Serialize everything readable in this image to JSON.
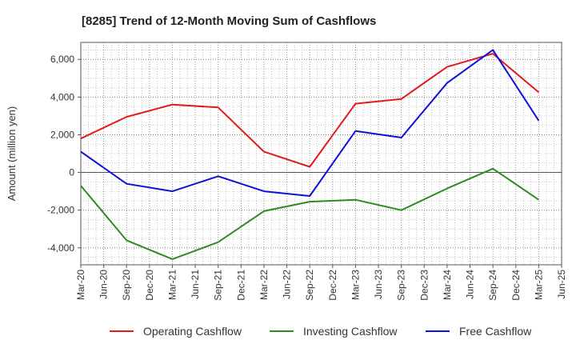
{
  "chart_data": {
    "type": "line",
    "title": "[8285]  Trend of 12-Month Moving Sum of Cashflows",
    "xlabel": "",
    "ylabel": "Amount (million yen)",
    "ylim": [
      -4900,
      6900
    ],
    "yticks": [
      -4000,
      -2000,
      0,
      2000,
      4000,
      6000
    ],
    "ytick_labels": [
      "-4,000",
      "-2,000",
      "0",
      "2,000",
      "4,000",
      "6,000"
    ],
    "x_ticks": [
      "Mar-20",
      "Jun-20",
      "Sep-20",
      "Dec-20",
      "Mar-21",
      "Jun-21",
      "Sep-21",
      "Dec-21",
      "Mar-22",
      "Jun-22",
      "Sep-22",
      "Dec-22",
      "Mar-23",
      "Jun-23",
      "Sep-23",
      "Dec-23",
      "Mar-24",
      "Jun-24",
      "Sep-24",
      "Dec-24",
      "Mar-25",
      "Jun-25"
    ],
    "grid": true,
    "legend_position": "bottom",
    "series": [
      {
        "name": "Operating Cashflow",
        "color": "#e31a1c",
        "x": [
          "Mar-20",
          "Sep-20",
          "Mar-21",
          "Sep-21",
          "Mar-22",
          "Sep-22",
          "Mar-23",
          "Sep-23",
          "Mar-24",
          "Sep-24",
          "Mar-25"
        ],
        "values": [
          1800,
          2950,
          3600,
          3450,
          1100,
          300,
          3650,
          3900,
          5600,
          6300,
          4250
        ]
      },
      {
        "name": "Investing Cashflow",
        "color": "#2e8b22",
        "x": [
          "Mar-20",
          "Sep-20",
          "Mar-21",
          "Sep-21",
          "Mar-22",
          "Sep-22",
          "Mar-23",
          "Sep-23",
          "Mar-24",
          "Sep-24",
          "Mar-25"
        ],
        "values": [
          -700,
          -3600,
          -4600,
          -3700,
          -2050,
          -1550,
          -1450,
          -2000,
          -850,
          200,
          -1450
        ]
      },
      {
        "name": "Free Cashflow",
        "color": "#1010dd",
        "x": [
          "Mar-20",
          "Sep-20",
          "Mar-21",
          "Sep-21",
          "Mar-22",
          "Sep-22",
          "Mar-23",
          "Sep-23",
          "Mar-24",
          "Sep-24",
          "Mar-25"
        ],
        "values": [
          1100,
          -600,
          -1000,
          -200,
          -1000,
          -1250,
          2200,
          1850,
          4750,
          6500,
          2750
        ]
      }
    ]
  }
}
